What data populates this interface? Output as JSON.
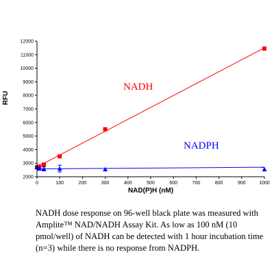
{
  "chart_data": {
    "type": "scatter",
    "title": "",
    "xlabel": "NAD(P)H (nM)",
    "ylabel": "RFU",
    "xlim": [
      0,
      1000
    ],
    "ylim": [
      2000,
      12000
    ],
    "x_ticks": [
      0,
      100,
      200,
      300,
      400,
      500,
      600,
      700,
      800,
      900,
      1000
    ],
    "y_ticks": [
      2000,
      3000,
      4000,
      5000,
      6000,
      7000,
      8000,
      9000,
      10000,
      11000,
      12000
    ],
    "grid": false,
    "series": [
      {
        "name": "NADH",
        "color": "#ff0000",
        "marker": "square",
        "x": [
          0,
          10,
          30,
          100,
          300,
          1000
        ],
        "y": [
          2700,
          2750,
          2900,
          3500,
          5500,
          11450
        ],
        "fit": {
          "x": [
            0,
            1000
          ],
          "y": [
            2720,
            11500
          ]
        }
      },
      {
        "name": "NADPH",
        "color": "#0000ff",
        "marker": "triangle",
        "x": [
          0,
          10,
          30,
          100,
          300,
          1000
        ],
        "y": [
          2700,
          2600,
          2580,
          2600,
          2550,
          2550
        ],
        "yerr": [
          0,
          0,
          150,
          250,
          0,
          0
        ],
        "fit": {
          "x": [
            0,
            1000
          ],
          "y": [
            2580,
            2700
          ]
        }
      }
    ]
  },
  "caption": "NADH dose response on 96-well black plate was measured with Amplite™ NAD/NADH Assay Kit. As low as 100 nM (10 pmol/well) of NADH can be detected with 1 hour incubation time (n=3) while there is no response from NADPH."
}
